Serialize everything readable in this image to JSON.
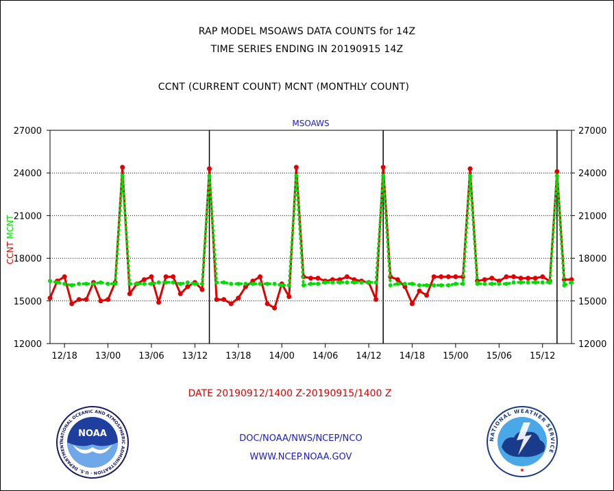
{
  "header": {
    "title1": "RAP MODEL MSOAWS DATA COUNTS for 14Z",
    "title2": "TIME SERIES ENDING IN 20190915 14Z",
    "title3": "CCNT (CURRENT COUNT) MCNT (MONTHLY COUNT)"
  },
  "footer": {
    "date_range": "DATE 20190912/1400 Z-20190915/1400 Z",
    "org": "DOC/NOAA/NWS/NCEP/NCO",
    "url": "WWW.NCEP.NOAA.GOV"
  },
  "logos": {
    "noaa_text": "NOAA",
    "noaa_ring": "NATIONAL OCEANIC AND ATMOSPHERIC ADMINISTRATION · U.S. DEPARTMENT OF COMMERCE",
    "nws_ring": "NATIONAL WEATHER SERVICE"
  },
  "chart_data": {
    "type": "line",
    "title": "MSOAWS",
    "ylabel_parts": [
      {
        "text": "CCNT",
        "color": "#e00000"
      },
      {
        "text": "MCNT",
        "color": "#00dd00"
      }
    ],
    "ylim": [
      12000,
      27000
    ],
    "yticks": [
      12000,
      15000,
      18000,
      21000,
      24000,
      27000
    ],
    "grid_y": [
      15000,
      18000,
      21000,
      24000
    ],
    "x_range_hours": [
      0,
      72
    ],
    "xticks": [
      {
        "hour": 2,
        "label": "12/18"
      },
      {
        "hour": 8,
        "label": "13/00"
      },
      {
        "hour": 14,
        "label": "13/06"
      },
      {
        "hour": 20,
        "label": "13/12"
      },
      {
        "hour": 26,
        "label": "13/18"
      },
      {
        "hour": 32,
        "label": "14/00"
      },
      {
        "hour": 38,
        "label": "14/06"
      },
      {
        "hour": 44,
        "label": "14/12"
      },
      {
        "hour": 50,
        "label": "14/18"
      },
      {
        "hour": 56,
        "label": "15/00"
      },
      {
        "hour": 62,
        "label": "15/06"
      },
      {
        "hour": 68,
        "label": "15/12"
      }
    ],
    "day_separators_hours": [
      22,
      46,
      70
    ],
    "series": [
      {
        "name": "CCNT",
        "color": "#e00000",
        "style": "solid",
        "values": [
          15200,
          16400,
          16700,
          14800,
          15100,
          15100,
          16300,
          15000,
          15100,
          16300,
          24400,
          15500,
          16200,
          16500,
          16700,
          14900,
          16700,
          16700,
          15500,
          16000,
          16300,
          15800,
          24300,
          15100,
          15100,
          14800,
          15200,
          16000,
          16400,
          16700,
          14800,
          14500,
          16200,
          15300,
          24400,
          16700,
          16600,
          16600,
          16400,
          16500,
          16500,
          16700,
          16500,
          16400,
          16300,
          15100,
          24400,
          16700,
          16500,
          16000,
          14800,
          15700,
          15400,
          16700,
          16700,
          16700,
          16700,
          16700,
          24300,
          16400,
          16500,
          16600,
          16400,
          16700,
          16700,
          16600,
          16600,
          16600,
          16700,
          16400,
          24100,
          16500,
          16500
        ]
      },
      {
        "name": "MCNT",
        "color": "#00dd00",
        "style": "dotted",
        "values": [
          16400,
          16300,
          16200,
          16100,
          16200,
          16200,
          16200,
          16300,
          16200,
          16200,
          23800,
          16200,
          16200,
          16200,
          16200,
          16300,
          16300,
          16300,
          16200,
          16300,
          16200,
          16200,
          23800,
          16300,
          16300,
          16200,
          16200,
          16200,
          16200,
          16200,
          16200,
          16200,
          16100,
          16100,
          23800,
          16100,
          16200,
          16200,
          16300,
          16300,
          16300,
          16300,
          16300,
          16300,
          16300,
          16300,
          23800,
          16100,
          16200,
          16200,
          16200,
          16100,
          16100,
          16100,
          16100,
          16100,
          16200,
          16200,
          23800,
          16200,
          16200,
          16200,
          16200,
          16200,
          16300,
          16300,
          16300,
          16300,
          16300,
          16300,
          23800,
          16100,
          16300
        ]
      }
    ]
  }
}
